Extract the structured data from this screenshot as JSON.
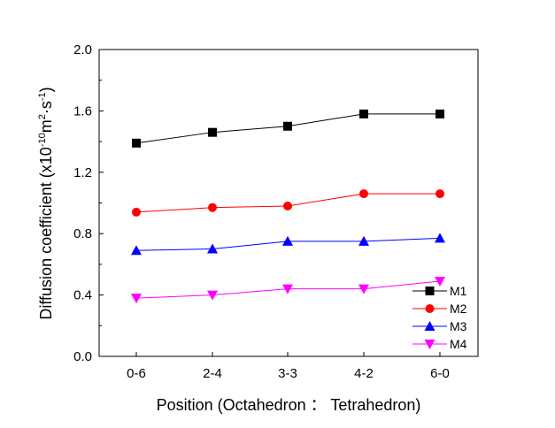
{
  "chart_data": {
    "type": "line",
    "xlabel": "Position (Octahedron ： Tetrahedron)",
    "ylabel_main": "Diffusion coefficient (x10",
    "ylabel_sup1": "-10",
    "ylabel_mid": "m",
    "ylabel_sup2": "2",
    "ylabel_mid2": "·s",
    "ylabel_sup3": "-1",
    "ylabel_end": ")",
    "categories": [
      "0-6",
      "2-4",
      "3-3",
      "4-2",
      "6-0"
    ],
    "ylim": [
      0.0,
      2.0
    ],
    "yticks": [
      "0.0",
      "0.4",
      "0.8",
      "1.2",
      "1.6",
      "2.0"
    ],
    "series": [
      {
        "name": "M1",
        "values": [
          1.39,
          1.46,
          1.5,
          1.58,
          1.58
        ],
        "color": "#000000",
        "marker": "square"
      },
      {
        "name": "M2",
        "values": [
          0.94,
          0.97,
          0.98,
          1.06,
          1.06
        ],
        "color": "#ff0000",
        "marker": "circle"
      },
      {
        "name": "M3",
        "values": [
          0.69,
          0.7,
          0.75,
          0.75,
          0.77
        ],
        "color": "#0000ff",
        "marker": "triangle-up"
      },
      {
        "name": "M4",
        "values": [
          0.38,
          0.4,
          0.44,
          0.44,
          0.49
        ],
        "color": "#ff00ff",
        "marker": "triangle-down"
      }
    ],
    "legend_position": "bottom-right",
    "grid": false
  }
}
